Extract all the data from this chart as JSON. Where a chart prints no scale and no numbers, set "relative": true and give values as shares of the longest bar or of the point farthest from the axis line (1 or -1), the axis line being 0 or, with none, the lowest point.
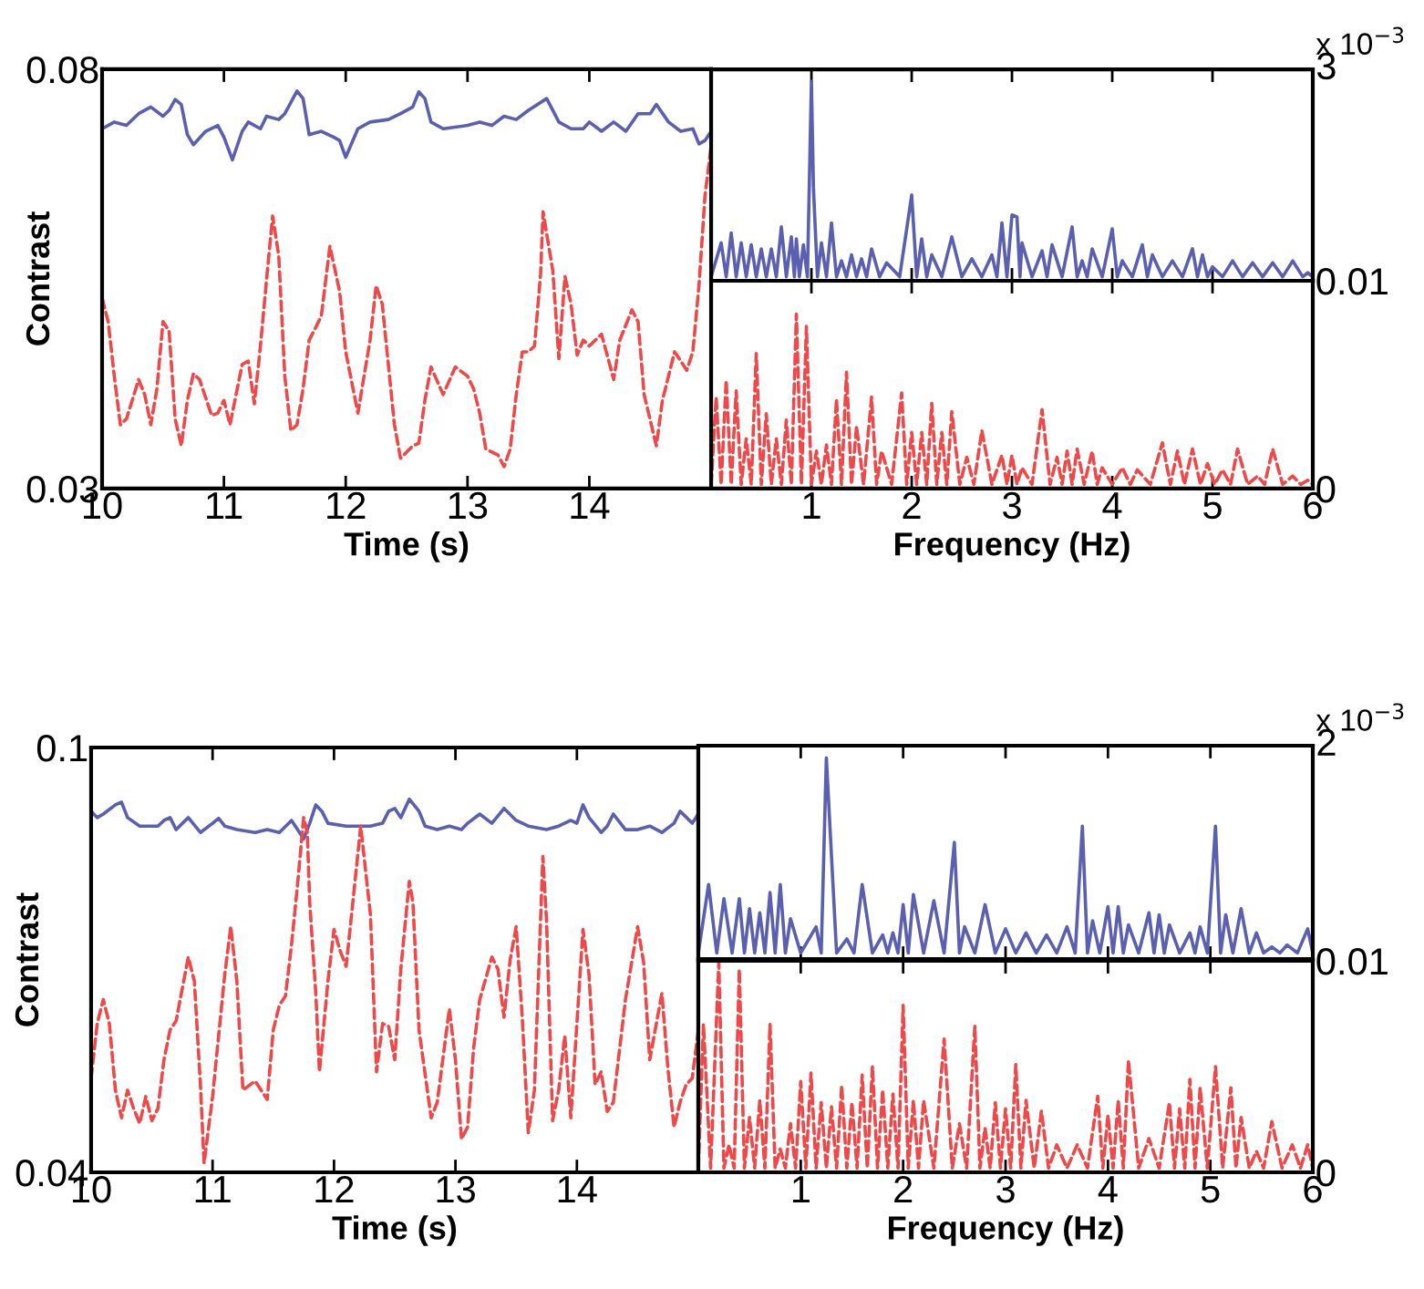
{
  "chart_data": [
    {
      "type": "line",
      "xlabel": "Time (s)",
      "ylabel": "Contrast",
      "xlim": [
        10,
        15
      ],
      "xticks": [
        10,
        11,
        12,
        13,
        14
      ],
      "ylim": [
        0.03,
        0.08
      ],
      "yticks": [
        0.03,
        0.08
      ],
      "series": [
        {
          "color": "#5a5fb0",
          "line_style": "solid",
          "x": [
            10.0,
            10.1,
            10.2,
            10.3,
            10.4,
            10.5,
            10.55,
            10.6,
            10.65,
            10.7,
            10.75,
            10.85,
            10.95,
            11.0,
            11.07,
            11.15,
            11.2,
            11.3,
            11.35,
            11.45,
            11.5,
            11.6,
            11.65,
            11.7,
            11.8,
            11.9,
            11.95,
            12.0,
            12.1,
            12.2,
            12.35,
            12.45,
            12.55,
            12.6,
            12.65,
            12.7,
            12.8,
            13.0,
            13.1,
            13.2,
            13.3,
            13.4,
            13.5,
            13.65,
            13.75,
            13.85,
            13.95,
            14.0,
            14.1,
            14.2,
            14.3,
            14.4,
            14.5,
            14.55,
            14.65,
            14.75,
            14.85,
            14.9,
            14.95,
            15.0
          ],
          "values": [
            0.0729,
            0.0737,
            0.0733,
            0.0747,
            0.0755,
            0.0744,
            0.0751,
            0.0764,
            0.0758,
            0.0722,
            0.071,
            0.0726,
            0.0733,
            0.0719,
            0.0692,
            0.0726,
            0.0737,
            0.0729,
            0.0744,
            0.074,
            0.0747,
            0.0774,
            0.0765,
            0.0722,
            0.0726,
            0.0719,
            0.0715,
            0.0695,
            0.0729,
            0.0737,
            0.074,
            0.0747,
            0.0755,
            0.0773,
            0.0765,
            0.0737,
            0.0729,
            0.0733,
            0.0737,
            0.0733,
            0.0744,
            0.074,
            0.0751,
            0.0765,
            0.0737,
            0.0729,
            0.0729,
            0.0737,
            0.0726,
            0.0737,
            0.0726,
            0.0747,
            0.0747,
            0.0758,
            0.0737,
            0.0726,
            0.0729,
            0.0711,
            0.0715,
            0.0726
          ]
        },
        {
          "color": "#f04848",
          "line_style": "dashed",
          "x": [
            10.0,
            10.05,
            10.1,
            10.15,
            10.2,
            10.3,
            10.35,
            10.4,
            10.45,
            10.5,
            10.55,
            10.6,
            10.65,
            10.7,
            10.75,
            10.8,
            10.9,
            10.95,
            11.0,
            11.05,
            11.15,
            11.2,
            11.25,
            11.3,
            11.35,
            11.4,
            11.45,
            11.5,
            11.55,
            11.6,
            11.65,
            11.7,
            11.75,
            11.8,
            11.87,
            11.95,
            12.0,
            12.1,
            12.2,
            12.25,
            12.3,
            12.35,
            12.4,
            12.45,
            12.55,
            12.6,
            12.65,
            12.7,
            12.8,
            12.9,
            13.0,
            13.05,
            13.1,
            13.15,
            13.25,
            13.3,
            13.35,
            13.4,
            13.45,
            13.5,
            13.55,
            13.6,
            13.62,
            13.7,
            13.75,
            13.8,
            13.85,
            13.9,
            13.95,
            14.0,
            14.1,
            14.2,
            14.25,
            14.35,
            14.4,
            14.45,
            14.55,
            14.6,
            14.7,
            14.8,
            14.85,
            14.9,
            14.95,
            15.0
          ],
          "values": [
            0.0527,
            0.0499,
            0.0434,
            0.0376,
            0.0383,
            0.043,
            0.0412,
            0.0376,
            0.0419,
            0.0499,
            0.0488,
            0.0383,
            0.0351,
            0.0405,
            0.0437,
            0.043,
            0.0387,
            0.039,
            0.0405,
            0.0376,
            0.0448,
            0.0452,
            0.0401,
            0.047,
            0.0549,
            0.0625,
            0.0578,
            0.0434,
            0.0369,
            0.0376,
            0.0419,
            0.0477,
            0.0491,
            0.0506,
            0.0589,
            0.0535,
            0.0463,
            0.039,
            0.0477,
            0.0542,
            0.052,
            0.0448,
            0.0376,
            0.0336,
            0.0351,
            0.0354,
            0.0405,
            0.0445,
            0.0412,
            0.0445,
            0.0434,
            0.0419,
            0.039,
            0.0347,
            0.034,
            0.0326,
            0.0347,
            0.0412,
            0.0463,
            0.0463,
            0.047,
            0.0556,
            0.063,
            0.056,
            0.0455,
            0.0553,
            0.052,
            0.0459,
            0.0477,
            0.047,
            0.0484,
            0.043,
            0.0477,
            0.0513,
            0.0499,
            0.0412,
            0.0351,
            0.0405,
            0.0463,
            0.0441,
            0.0463,
            0.0542,
            0.065,
            0.0708
          ]
        }
      ]
    },
    {
      "type": "line",
      "xlim": [
        0,
        6
      ],
      "xticks": [
        1,
        2,
        3,
        4,
        5,
        6
      ],
      "relative": true,
      "tick_labels": false,
      "annotations": [
        "3",
        "x 10$^{−3}$"
      ],
      "series": [
        {
          "color": "#5a5fb0",
          "line_style": "solid",
          "x": [
            0,
            0.1,
            0.15,
            0.2,
            0.25,
            0.3,
            0.35,
            0.4,
            0.45,
            0.5,
            0.55,
            0.6,
            0.65,
            0.7,
            0.75,
            0.8,
            0.83,
            0.85,
            0.88,
            0.92,
            0.96,
            1.0,
            1.02,
            1.06,
            1.1,
            1.15,
            1.2,
            1.25,
            1.3,
            1.35,
            1.4,
            1.45,
            1.5,
            1.55,
            1.6,
            1.68,
            1.75,
            1.88,
            2.0,
            2.05,
            2.1,
            2.15,
            2.2,
            2.3,
            2.4,
            2.5,
            2.6,
            2.7,
            2.8,
            2.85,
            2.9,
            2.95,
            3.0,
            3.05,
            3.08,
            3.1,
            3.2,
            3.3,
            3.35,
            3.4,
            3.5,
            3.6,
            3.65,
            3.7,
            3.75,
            3.8,
            3.9,
            4.0,
            4.05,
            4.1,
            4.2,
            4.3,
            4.35,
            4.4,
            4.5,
            4.6,
            4.7,
            4.8,
            4.85,
            4.9,
            4.95,
            5.0,
            5.1,
            5.2,
            5.3,
            5.4,
            5.5,
            5.6,
            5.7,
            5.8,
            5.9,
            5.95,
            6.0
          ],
          "values": [
            0.02,
            0.19,
            0.02,
            0.24,
            0.02,
            0.19,
            0.02,
            0.18,
            0.02,
            0.16,
            0.02,
            0.16,
            0.02,
            0.27,
            0.02,
            0.22,
            0.02,
            0.21,
            0.02,
            0.18,
            0.02,
            1,
            0.47,
            0.02,
            0.19,
            0.02,
            0.29,
            0.02,
            0.1,
            0.02,
            0.13,
            0.02,
            0.11,
            0.02,
            0.16,
            0.02,
            0.09,
            0.02,
            0.43,
            0.02,
            0.21,
            0.02,
            0.13,
            0.02,
            0.22,
            0.02,
            0.11,
            0.02,
            0.13,
            0.02,
            0.29,
            0.02,
            0.33,
            0.32,
            0.02,
            0.19,
            0.02,
            0.15,
            0.02,
            0.18,
            0.02,
            0.27,
            0.02,
            0.1,
            0.02,
            0.16,
            0.02,
            0.26,
            0.02,
            0.1,
            0.02,
            0.18,
            0.02,
            0.13,
            0.02,
            0.1,
            0.02,
            0.16,
            0.02,
            0.13,
            0.02,
            0.07,
            0.02,
            0.1,
            0.02,
            0.09,
            0.02,
            0.09,
            0.02,
            0.1,
            0.02,
            0.04,
            0.02
          ]
        }
      ]
    },
    {
      "type": "line",
      "xlabel": "Frequency (Hz)",
      "xlim": [
        0,
        6
      ],
      "xticks": [
        1,
        2,
        3,
        4,
        5,
        6
      ],
      "ylim": [
        0,
        0.01
      ],
      "yticks": [
        0,
        0.01
      ],
      "series": [
        {
          "color": "#f04848",
          "line_style": "dashed",
          "x": [
            0,
            0.05,
            0.1,
            0.15,
            0.2,
            0.25,
            0.3,
            0.35,
            0.4,
            0.45,
            0.5,
            0.55,
            0.6,
            0.65,
            0.7,
            0.75,
            0.8,
            0.85,
            0.9,
            0.95,
            1.0,
            1.05,
            1.1,
            1.15,
            1.2,
            1.25,
            1.3,
            1.35,
            1.4,
            1.45,
            1.52,
            1.6,
            1.65,
            1.7,
            1.8,
            1.9,
            1.95,
            2.0,
            2.05,
            2.1,
            2.15,
            2.2,
            2.25,
            2.3,
            2.35,
            2.4,
            2.48,
            2.55,
            2.62,
            2.7,
            2.8,
            2.9,
            2.95,
            3.0,
            3.05,
            3.1,
            3.2,
            3.3,
            3.38,
            3.45,
            3.5,
            3.55,
            3.6,
            3.65,
            3.72,
            3.8,
            3.85,
            3.9,
            4.0,
            4.1,
            4.18,
            4.25,
            4.38,
            4.5,
            4.58,
            4.65,
            4.72,
            4.8,
            4.88,
            4.95,
            5.02,
            5.1,
            5.18,
            5.25,
            5.35,
            5.45,
            5.52,
            5.6,
            5.7,
            5.8,
            5.88,
            5.95,
            6.0
          ],
          "values": [
            0.0002,
            0.0044,
            0.0002,
            0.0052,
            0.0002,
            0.0047,
            0.0002,
            0.0024,
            0.0002,
            0.0065,
            0.0002,
            0.0036,
            0.0002,
            0.0024,
            0.0002,
            0.0033,
            0.0002,
            0.0084,
            0.0002,
            0.0078,
            0.0002,
            0.0018,
            0.0002,
            0.0021,
            0.0002,
            0.0043,
            0.0002,
            0.0056,
            0.0002,
            0.003,
            0.0002,
            0.0044,
            0.0002,
            0.0018,
            0.0002,
            0.0046,
            0.0002,
            0.0027,
            0.0002,
            0.0027,
            0.0002,
            0.0041,
            0.0002,
            0.0027,
            0.0002,
            0.0037,
            0.0002,
            0.0015,
            0.0002,
            0.0028,
            0.0002,
            0.0016,
            0.0002,
            0.0016,
            0.0002,
            0.001,
            0.0002,
            0.0038,
            0.0002,
            0.0015,
            0.0002,
            0.0018,
            0.0002,
            0.0019,
            0.0002,
            0.0018,
            0.0002,
            0.001,
            0.0002,
            0.001,
            0.0002,
            0.0009,
            0.0002,
            0.0022,
            0.0002,
            0.0018,
            0.0002,
            0.0019,
            0.0002,
            0.0012,
            0.0002,
            0.0009,
            0.0002,
            0.0019,
            0.0002,
            0.0006,
            0.0002,
            0.0019,
            0.0002,
            0.0006,
            0.0002,
            0.0004,
            0.0002
          ]
        }
      ]
    },
    {
      "type": "line",
      "xlabel": "Time (s)",
      "ylabel": "Contrast",
      "xlim": [
        10,
        15
      ],
      "xticks": [
        10,
        11,
        12,
        13,
        14
      ],
      "ylim": [
        0.04,
        0.1
      ],
      "yticks": [
        0.04,
        0.1
      ],
      "series": [
        {
          "color": "#5a5fb0",
          "line_style": "solid",
          "x": [
            10.0,
            10.05,
            10.1,
            10.2,
            10.25,
            10.3,
            10.4,
            10.55,
            10.6,
            10.65,
            10.7,
            10.8,
            10.9,
            11.0,
            11.05,
            11.1,
            11.2,
            11.35,
            11.45,
            11.55,
            11.65,
            11.7,
            11.75,
            11.8,
            11.85,
            11.9,
            11.95,
            12.1,
            12.3,
            12.4,
            12.45,
            12.5,
            12.55,
            12.62,
            12.7,
            12.75,
            12.85,
            12.95,
            13.05,
            13.1,
            13.2,
            13.3,
            13.4,
            13.5,
            13.6,
            13.75,
            13.85,
            13.95,
            14.0,
            14.05,
            14.1,
            14.2,
            14.25,
            14.3,
            14.4,
            14.5,
            14.6,
            14.7,
            14.8,
            14.85,
            14.95,
            15.0
          ],
          "values": [
            0.091,
            0.0901,
            0.0906,
            0.0919,
            0.0923,
            0.0901,
            0.0889,
            0.0889,
            0.0897,
            0.0901,
            0.0884,
            0.0901,
            0.088,
            0.0893,
            0.09,
            0.0889,
            0.0884,
            0.088,
            0.0884,
            0.088,
            0.0897,
            0.0884,
            0.0871,
            0.0893,
            0.0919,
            0.091,
            0.0893,
            0.0889,
            0.0889,
            0.0893,
            0.091,
            0.0914,
            0.0901,
            0.0927,
            0.091,
            0.0889,
            0.0884,
            0.0889,
            0.0884,
            0.0893,
            0.0906,
            0.0893,
            0.0914,
            0.0897,
            0.0889,
            0.0884,
            0.0889,
            0.0897,
            0.0893,
            0.0919,
            0.0901,
            0.088,
            0.0889,
            0.0906,
            0.0884,
            0.0884,
            0.0889,
            0.088,
            0.0893,
            0.091,
            0.0893,
            0.0906
          ]
        },
        {
          "color": "#f04848",
          "line_style": "dashed",
          "x": [
            10.0,
            10.05,
            10.1,
            10.15,
            10.2,
            10.25,
            10.3,
            10.35,
            10.4,
            10.45,
            10.5,
            10.55,
            10.6,
            10.65,
            10.7,
            10.8,
            10.85,
            10.9,
            10.93,
            11.0,
            11.1,
            11.15,
            11.2,
            11.25,
            11.35,
            11.45,
            11.5,
            11.55,
            11.6,
            11.65,
            11.7,
            11.75,
            11.78,
            11.8,
            11.85,
            11.88,
            11.95,
            12.0,
            12.05,
            12.1,
            12.15,
            12.22,
            12.3,
            12.35,
            12.4,
            12.45,
            12.5,
            12.55,
            12.62,
            12.65,
            12.7,
            12.8,
            12.85,
            12.95,
            13.0,
            13.05,
            13.1,
            13.15,
            13.2,
            13.3,
            13.35,
            13.4,
            13.45,
            13.5,
            13.55,
            13.6,
            13.65,
            13.72,
            13.75,
            13.8,
            13.85,
            13.9,
            13.95,
            14.05,
            14.1,
            14.15,
            14.2,
            14.25,
            14.3,
            14.4,
            14.5,
            14.55,
            14.6,
            14.7,
            14.75,
            14.8,
            14.85,
            14.9,
            14.95,
            15.0
          ],
          "values": [
            0.0533,
            0.061,
            0.0644,
            0.061,
            0.0516,
            0.0477,
            0.0516,
            0.049,
            0.0469,
            0.0507,
            0.0473,
            0.049,
            0.0559,
            0.0601,
            0.0614,
            0.0704,
            0.067,
            0.0524,
            0.0413,
            0.0507,
            0.0679,
            0.0747,
            0.067,
            0.0516,
            0.0529,
            0.0503,
            0.0601,
            0.0636,
            0.0649,
            0.0721,
            0.0807,
            0.0901,
            0.088,
            0.0781,
            0.0653,
            0.0542,
            0.067,
            0.0743,
            0.0713,
            0.0691,
            0.0773,
            0.0889,
            0.0764,
            0.0542,
            0.061,
            0.0606,
            0.0559,
            0.0687,
            0.0811,
            0.0781,
            0.0601,
            0.0477,
            0.0499,
            0.0631,
            0.0559,
            0.0447,
            0.0464,
            0.0576,
            0.0644,
            0.0704,
            0.0687,
            0.0619,
            0.07,
            0.0747,
            0.0619,
            0.0456,
            0.0516,
            0.0846,
            0.0756,
            0.0473,
            0.0516,
            0.0593,
            0.0477,
            0.0743,
            0.0679,
            0.0524,
            0.0542,
            0.0486,
            0.0499,
            0.0644,
            0.0747,
            0.0696,
            0.0559,
            0.0653,
            0.0546,
            0.0464,
            0.0499,
            0.0524,
            0.0533,
            0.0601
          ]
        }
      ]
    },
    {
      "type": "line",
      "xlim": [
        0,
        6
      ],
      "xticks": [
        1,
        2,
        3,
        4,
        5,
        6
      ],
      "relative": true,
      "tick_labels": false,
      "annotations": [
        "2",
        "x 10$^{−3}$"
      ],
      "series": [
        {
          "color": "#5a5fb0",
          "line_style": "solid",
          "x": [
            0,
            0.1,
            0.18,
            0.25,
            0.33,
            0.4,
            0.45,
            0.5,
            0.55,
            0.6,
            0.65,
            0.7,
            0.75,
            0.8,
            0.85,
            0.9,
            1.0,
            1.15,
            1.2,
            1.25,
            1.35,
            1.45,
            1.52,
            1.6,
            1.7,
            1.8,
            1.85,
            1.9,
            1.95,
            2.0,
            2.05,
            2.1,
            2.2,
            2.3,
            2.4,
            2.5,
            2.55,
            2.6,
            2.7,
            2.8,
            2.9,
            3.0,
            3.1,
            3.2,
            3.3,
            3.4,
            3.5,
            3.6,
            3.68,
            3.75,
            3.8,
            3.85,
            3.92,
            4.0,
            4.05,
            4.1,
            4.15,
            4.2,
            4.3,
            4.4,
            4.45,
            4.5,
            4.55,
            4.6,
            4.7,
            4.8,
            4.85,
            4.9,
            4.97,
            5.05,
            5.1,
            5.15,
            5.22,
            5.3,
            5.38,
            5.45,
            5.52,
            5.6,
            5.68,
            5.75,
            5.85,
            5.95,
            6.0
          ],
          "values": [
            0.03,
            0.37,
            0.03,
            0.3,
            0.03,
            0.3,
            0.03,
            0.25,
            0.03,
            0.23,
            0.03,
            0.33,
            0.03,
            0.37,
            0.03,
            0.2,
            0.03,
            0.16,
            0.03,
            1,
            0.03,
            0.1,
            0.03,
            0.37,
            0.03,
            0.12,
            0.03,
            0.13,
            0.03,
            0.27,
            0.03,
            0.32,
            0.03,
            0.29,
            0.03,
            0.58,
            0.03,
            0.16,
            0.03,
            0.27,
            0.03,
            0.15,
            0.03,
            0.13,
            0.03,
            0.12,
            0.03,
            0.16,
            0.03,
            0.66,
            0.03,
            0.19,
            0.03,
            0.26,
            0.03,
            0.26,
            0.03,
            0.17,
            0.03,
            0.23,
            0.03,
            0.22,
            0.03,
            0.17,
            0.03,
            0.13,
            0.03,
            0.16,
            0.03,
            0.66,
            0.03,
            0.22,
            0.03,
            0.25,
            0.03,
            0.13,
            0.03,
            0.06,
            0.03,
            0.07,
            0.03,
            0.15,
            0.03
          ]
        }
      ]
    },
    {
      "type": "line",
      "xlabel": "Frequency (Hz)",
      "xlim": [
        0,
        6
      ],
      "xticks": [
        1,
        2,
        3,
        4,
        5,
        6
      ],
      "ylim": [
        0,
        0.01
      ],
      "yticks": [
        0,
        0.01
      ],
      "series": [
        {
          "color": "#f04848",
          "line_style": "dashed",
          "x": [
            0,
            0.05,
            0.12,
            0.2,
            0.25,
            0.3,
            0.35,
            0.4,
            0.45,
            0.5,
            0.55,
            0.6,
            0.65,
            0.7,
            0.75,
            0.8,
            0.85,
            0.9,
            0.95,
            1.0,
            1.05,
            1.1,
            1.15,
            1.2,
            1.25,
            1.3,
            1.35,
            1.4,
            1.45,
            1.5,
            1.55,
            1.6,
            1.65,
            1.7,
            1.75,
            1.8,
            1.85,
            1.9,
            1.95,
            2.0,
            2.05,
            2.1,
            2.15,
            2.2,
            2.3,
            2.4,
            2.48,
            2.55,
            2.62,
            2.7,
            2.75,
            2.8,
            2.85,
            2.9,
            2.95,
            3.0,
            3.05,
            3.1,
            3.15,
            3.2,
            3.28,
            3.35,
            3.42,
            3.5,
            3.6,
            3.7,
            3.8,
            3.9,
            3.95,
            4.0,
            4.05,
            4.1,
            4.15,
            4.2,
            4.3,
            4.4,
            4.5,
            4.6,
            4.65,
            4.7,
            4.75,
            4.8,
            4.85,
            4.9,
            4.97,
            5.05,
            5.12,
            5.2,
            5.25,
            5.3,
            5.38,
            5.45,
            5.52,
            5.6,
            5.7,
            5.8,
            5.88,
            5.95,
            6.0
          ],
          "values": [
            0.0002,
            0.007,
            0.0002,
            0.0099,
            0.0002,
            0.0013,
            0.0002,
            0.0096,
            0.0002,
            0.0026,
            0.0002,
            0.0034,
            0.0002,
            0.007,
            0.0002,
            0.0011,
            0.0002,
            0.0023,
            0.0002,
            0.0043,
            0.0002,
            0.0047,
            0.0002,
            0.0033,
            0.0002,
            0.0031,
            0.0002,
            0.0041,
            0.0002,
            0.0033,
            0.0002,
            0.0046,
            0.0002,
            0.005,
            0.0002,
            0.0039,
            0.0002,
            0.0037,
            0.0002,
            0.0079,
            0.0002,
            0.0034,
            0.0002,
            0.0034,
            0.0002,
            0.0063,
            0.0002,
            0.0023,
            0.0002,
            0.0069,
            0.0002,
            0.0021,
            0.0002,
            0.0033,
            0.0002,
            0.003,
            0.0002,
            0.0051,
            0.0002,
            0.0034,
            0.0002,
            0.0029,
            0.0002,
            0.0013,
            0.0002,
            0.0013,
            0.0002,
            0.0036,
            0.0002,
            0.0027,
            0.0002,
            0.0034,
            0.0002,
            0.0053,
            0.0002,
            0.0016,
            0.0002,
            0.0033,
            0.0002,
            0.003,
            0.0002,
            0.0044,
            0.0002,
            0.004,
            0.0002,
            0.005,
            0.0002,
            0.004,
            0.0002,
            0.0026,
            0.0002,
            0.001,
            0.0002,
            0.0024,
            0.0002,
            0.0013,
            0.0002,
            0.0013,
            0.0002
          ]
        }
      ]
    }
  ]
}
